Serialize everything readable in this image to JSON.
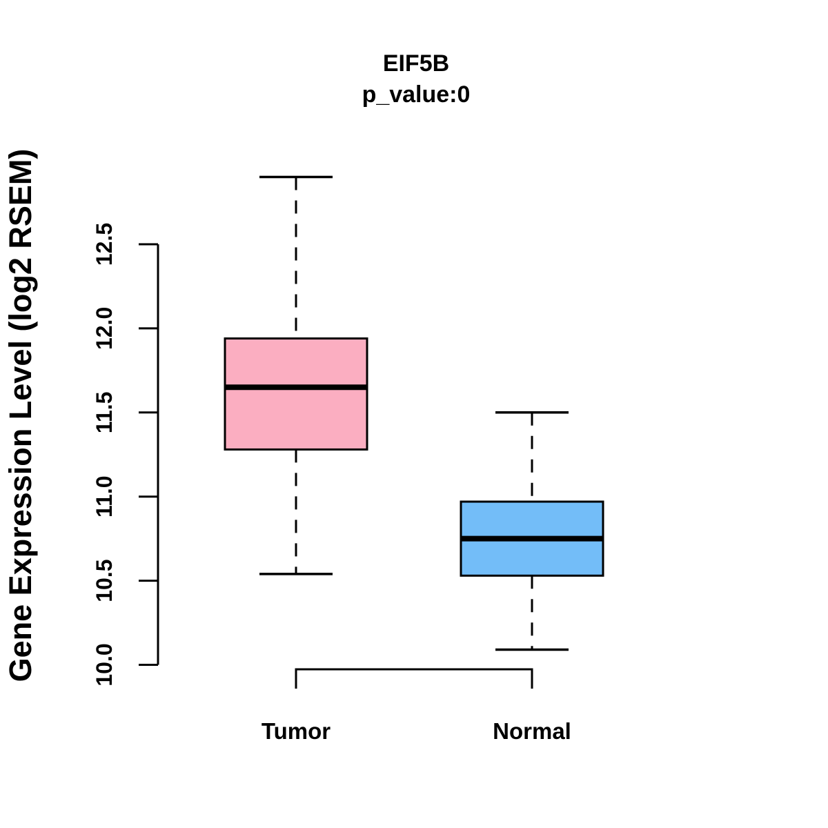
{
  "figure": {
    "background": "#ffffff"
  },
  "chart_data": {
    "type": "boxplot",
    "title": "EIF5B",
    "subtitle": "p_value:0",
    "ylabel": "Gene Expression Level (log2 RSEM)",
    "xlabel": "",
    "ylim": [
      10.0,
      12.5
    ],
    "yticks": [
      10.0,
      10.5,
      11.0,
      11.5,
      12.0,
      12.5
    ],
    "ytick_labels": [
      "10.0",
      "10.5",
      "11.0",
      "11.5",
      "12.0",
      "12.5"
    ],
    "grid": false,
    "legend": "none",
    "categories": [
      "Tumor",
      "Normal"
    ],
    "series": [
      {
        "name": "Tumor",
        "fill": "#FBAEC1",
        "whisker_low": 10.54,
        "q1": 11.28,
        "median": 11.65,
        "q3": 11.94,
        "whisker_high": 12.9
      },
      {
        "name": "Normal",
        "fill": "#73BDF8",
        "whisker_low": 10.09,
        "q1": 10.53,
        "median": 10.75,
        "q3": 10.97,
        "whisker_high": 11.5
      }
    ],
    "comparison_bracket": {
      "from": "Tumor",
      "to": "Normal"
    }
  },
  "colors": {
    "axis": "#000000",
    "box_stroke": "#000000",
    "median": "#000000",
    "text": "#000000",
    "tumor_fill": "#FBAEC1",
    "normal_fill": "#73BDF8"
  }
}
